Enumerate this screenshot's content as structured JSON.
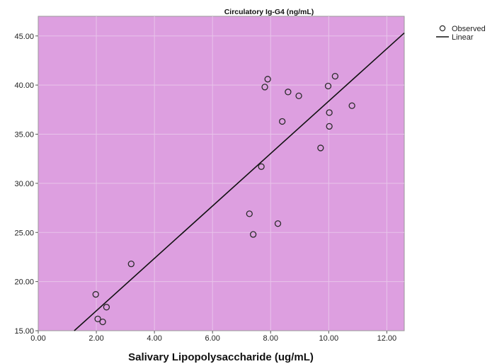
{
  "chart_data": {
    "type": "scatter",
    "title": "Circulatory Ig-G4 (ng/mL)",
    "xlabel": "Salivary Lipopolysaccharide (ug/mL)",
    "ylabel": "",
    "xlim": [
      0,
      12.6
    ],
    "ylim": [
      15,
      47
    ],
    "x_ticks": [
      "0.00",
      "2.00",
      "4.00",
      "6.00",
      "8.00",
      "10.00",
      "12.00"
    ],
    "y_ticks": [
      "15.00",
      "20.00",
      "25.00",
      "30.00",
      "35.00",
      "40.00",
      "45.00"
    ],
    "grid": true,
    "legend_position": "top-right",
    "series": [
      {
        "name": "Observed",
        "marker": "open-circle",
        "points": [
          [
            1.98,
            18.7
          ],
          [
            2.05,
            16.2
          ],
          [
            2.22,
            15.9
          ],
          [
            2.35,
            17.4
          ],
          [
            3.2,
            21.8
          ],
          [
            7.27,
            26.9
          ],
          [
            7.4,
            24.8
          ],
          [
            7.68,
            31.7
          ],
          [
            7.8,
            39.8
          ],
          [
            7.9,
            40.6
          ],
          [
            8.25,
            25.9
          ],
          [
            8.4,
            36.3
          ],
          [
            8.6,
            39.3
          ],
          [
            8.97,
            38.9
          ],
          [
            9.72,
            33.6
          ],
          [
            9.98,
            39.9
          ],
          [
            10.02,
            37.2
          ],
          [
            10.02,
            35.8
          ],
          [
            10.22,
            40.9
          ],
          [
            10.8,
            37.9
          ]
        ]
      },
      {
        "name": "Linear",
        "marker": "line",
        "points": [
          [
            1.24,
            15.0
          ],
          [
            12.6,
            45.3
          ]
        ]
      }
    ]
  },
  "colors": {
    "plot_bg": "#dd9fe0",
    "gridline": "#e8c4ea",
    "marker_stroke": "#2a2a2a",
    "line": "#111111"
  }
}
